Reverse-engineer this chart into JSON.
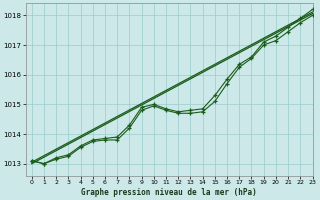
{
  "xlabel": "Graphe pression niveau de la mer (hPa)",
  "xlim": [
    -0.5,
    23
  ],
  "ylim": [
    1012.6,
    1018.4
  ],
  "yticks": [
    1013,
    1014,
    1015,
    1016,
    1017,
    1018
  ],
  "xticks": [
    0,
    1,
    2,
    3,
    4,
    5,
    6,
    7,
    8,
    9,
    10,
    11,
    12,
    13,
    14,
    15,
    16,
    17,
    18,
    19,
    20,
    21,
    22,
    23
  ],
  "background_color": "#cce8e8",
  "grid_color": "#99cccc",
  "line_color": "#1a5c1a",
  "line_straight1": [
    1013.05,
    1013.27,
    1013.49,
    1013.71,
    1013.93,
    1014.15,
    1014.37,
    1014.59,
    1014.81,
    1015.03,
    1015.25,
    1015.47,
    1015.69,
    1015.91,
    1016.13,
    1016.35,
    1016.57,
    1016.79,
    1017.01,
    1017.23,
    1017.45,
    1017.67,
    1017.89,
    1018.11
  ],
  "line_straight2": [
    1013.0,
    1013.22,
    1013.44,
    1013.66,
    1013.88,
    1014.1,
    1014.32,
    1014.54,
    1014.76,
    1014.98,
    1015.2,
    1015.42,
    1015.64,
    1015.86,
    1016.08,
    1016.3,
    1016.52,
    1016.74,
    1016.96,
    1017.18,
    1017.4,
    1017.62,
    1017.84,
    1018.06
  ],
  "line_wavy1": [
    1013.1,
    1013.0,
    1013.2,
    1013.3,
    1013.6,
    1013.8,
    1013.85,
    1013.9,
    1014.3,
    1014.9,
    1015.0,
    1014.85,
    1014.75,
    1014.8,
    1014.85,
    1015.3,
    1015.85,
    1016.35,
    1016.6,
    1017.1,
    1017.3,
    1017.6,
    1017.9,
    1018.2
  ],
  "line_wavy2": [
    1013.1,
    1013.0,
    1013.15,
    1013.25,
    1013.55,
    1013.75,
    1013.8,
    1013.8,
    1014.2,
    1014.8,
    1014.95,
    1014.8,
    1014.7,
    1014.7,
    1014.75,
    1015.1,
    1015.7,
    1016.25,
    1016.55,
    1017.0,
    1017.15,
    1017.45,
    1017.75,
    1018.0
  ]
}
